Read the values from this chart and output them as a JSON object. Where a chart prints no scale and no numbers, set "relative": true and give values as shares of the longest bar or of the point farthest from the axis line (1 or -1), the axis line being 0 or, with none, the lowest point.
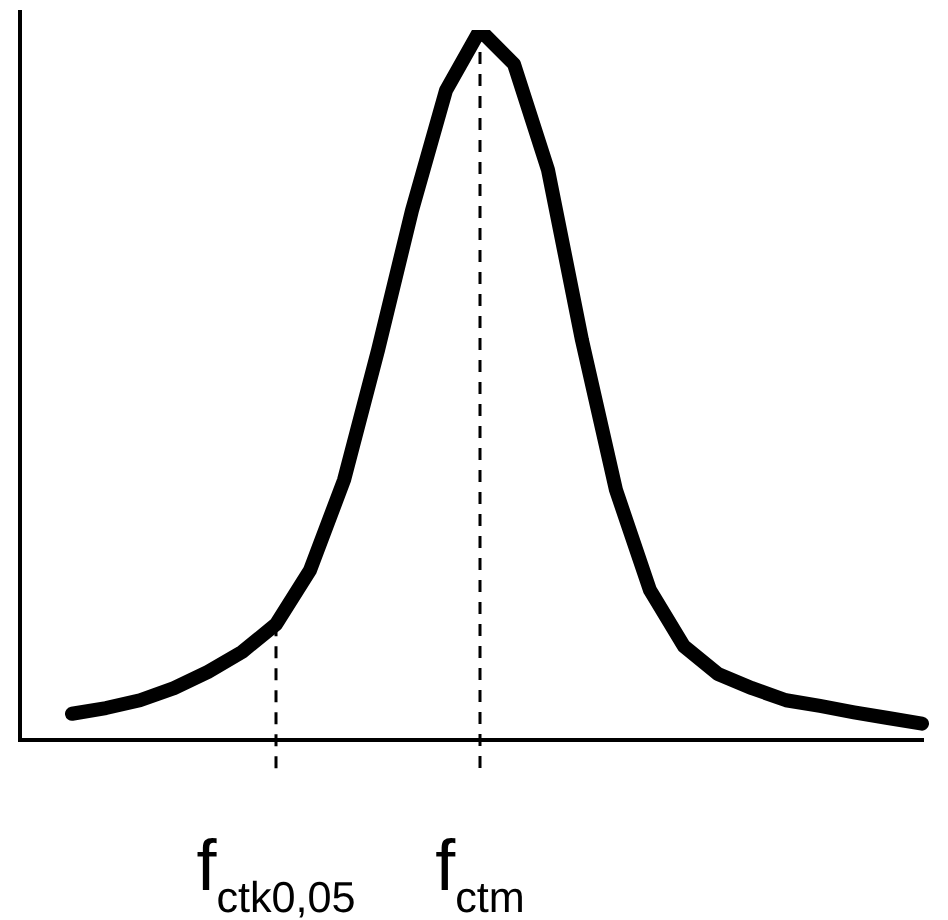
{
  "chart_data": {
    "type": "line",
    "relative": true,
    "tick_labels": "x",
    "grid": false,
    "legend": false,
    "marker": "none",
    "line_style": "solid",
    "categories": [
      null,
      null,
      null,
      null,
      null,
      null,
      "f$_{ctk0,05}$",
      null,
      null,
      null,
      null,
      null,
      "f$_{ctm}$",
      null,
      null,
      null,
      null,
      null,
      null,
      null,
      null,
      null,
      null,
      null,
      null,
      null
    ],
    "series": [
      {
        "color": "#000000",
        "values": [
          0.037,
          0.045,
          0.056,
          0.073,
          0.096,
          0.124,
          0.163,
          0.239,
          0.366,
          0.549,
          0.746,
          0.915,
          1,
          0.952,
          0.803,
          0.563,
          0.352,
          0.211,
          0.132,
          0.093,
          0.073,
          0.056,
          0.048,
          0.039,
          0.031,
          0.023
        ]
      }
    ],
    "ref_lines": [
      {
        "axis": "x",
        "value": "f$_{ctk0,05}$",
        "line_style": "dashed",
        "color": "#000000"
      },
      {
        "axis": "x",
        "value": "f$_{ctm}$",
        "line_style": "dashed",
        "color": "#000000"
      }
    ]
  }
}
